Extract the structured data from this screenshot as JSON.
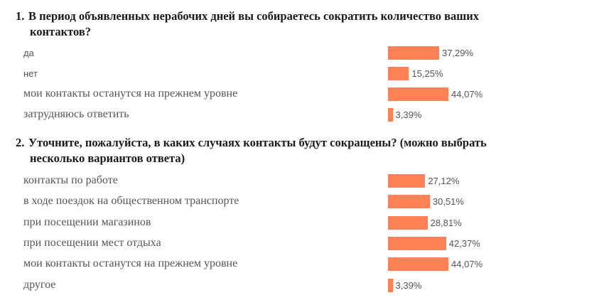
{
  "questions": [
    {
      "number": "1.",
      "title_line1": "В период объявленных нерабочих дней вы собираетесь сократить количество ваших",
      "title_line2": "контактов?"
    },
    {
      "number": "2.",
      "title_line1": "Уточните, пожалуйста, в каких случаях контакты будут сокращены? (можно выбрать",
      "title_line2": "несколько вариантов ответа)"
    }
  ],
  "chart_data": [
    {
      "type": "bar",
      "orientation": "horizontal",
      "categories": [
        "да",
        "нет",
        "мои контакты останутся на прежнем уровне",
        "затрудняюсь ответить"
      ],
      "values": [
        37.29,
        15.25,
        44.07,
        3.39
      ],
      "value_labels": [
        "37,29%",
        "15,25%",
        "44,07%",
        "3,39%"
      ],
      "unit": "%",
      "xlim": [
        0,
        100
      ],
      "bar_color": "#ff8256",
      "grid": false
    },
    {
      "type": "bar",
      "orientation": "horizontal",
      "categories": [
        "контакты по работе",
        "в ходе поездок на общественном транспорте",
        "при посещении магазинов",
        "при посещении мест отдыха",
        "мои контакты останутся на прежнем уровне",
        "другое"
      ],
      "values": [
        27.12,
        30.51,
        28.81,
        42.37,
        44.07,
        3.39
      ],
      "value_labels": [
        "27,12%",
        "30,51%",
        "28,81%",
        "42,37%",
        "44,07%",
        "3,39%"
      ],
      "unit": "%",
      "xlim": [
        0,
        100
      ],
      "bar_color": "#ff8256",
      "grid": false
    }
  ]
}
